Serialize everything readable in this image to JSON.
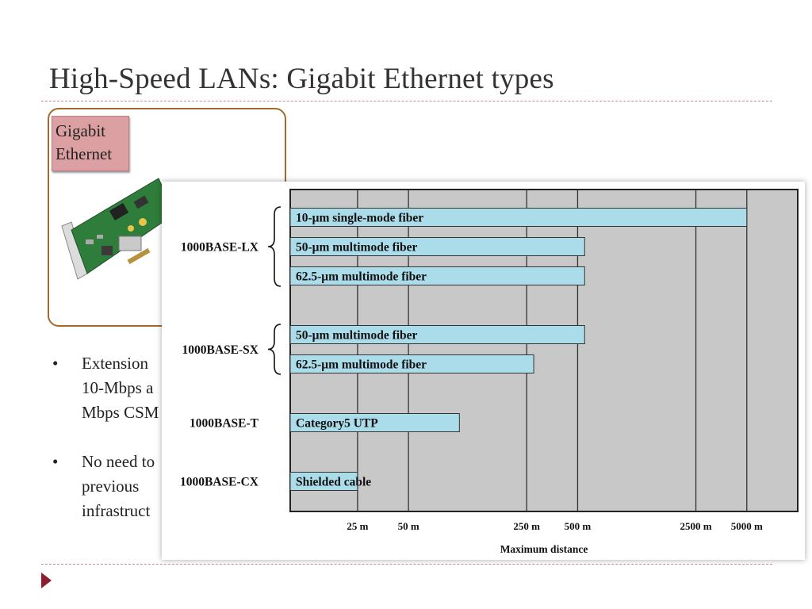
{
  "slide": {
    "title": "High-Speed LANs: Gigabit Ethernet types",
    "image_label": "Gigabit\nEthernet",
    "bullets": [
      {
        "marker": "•",
        "text": "Extension\n10-Mbps a\nMbps CSM"
      },
      {
        "marker": "•",
        "text": "No need to\nprevious\ninfrastruct"
      }
    ],
    "accent_color": "#8b1f2f"
  },
  "chart_data": {
    "type": "bar",
    "orientation": "horizontal",
    "xlabel": "Maximum distance",
    "xscale": "log",
    "xticks": [
      "25 m",
      "50 m",
      "250 m",
      "500 m",
      "2500 m",
      "5000 m"
    ],
    "xtick_values": [
      25,
      50,
      250,
      500,
      2500,
      5000
    ],
    "xlim": [
      10,
      10000
    ],
    "grid": true,
    "bar_color": "#aadcea",
    "plot_background": "#c8c8c8",
    "groups": [
      {
        "name": "1000BASE-LX",
        "bars": [
          {
            "label": "10-μm single-mode fiber",
            "value": 5000
          },
          {
            "label": "50-μm multimode fiber",
            "value": 550
          },
          {
            "label": "62.5-μm multimode fiber",
            "value": 550
          }
        ]
      },
      {
        "name": "1000BASE-SX",
        "bars": [
          {
            "label": "50-μm multimode fiber",
            "value": 550
          },
          {
            "label": "62.5-μm multimode fiber",
            "value": 275
          }
        ]
      },
      {
        "name": "1000BASE-T",
        "bars": [
          {
            "label": "Category5 UTP",
            "value": 100
          }
        ]
      },
      {
        "name": "1000BASE-CX",
        "bars": [
          {
            "label": "Shielded cable",
            "value": 25
          }
        ]
      }
    ]
  }
}
